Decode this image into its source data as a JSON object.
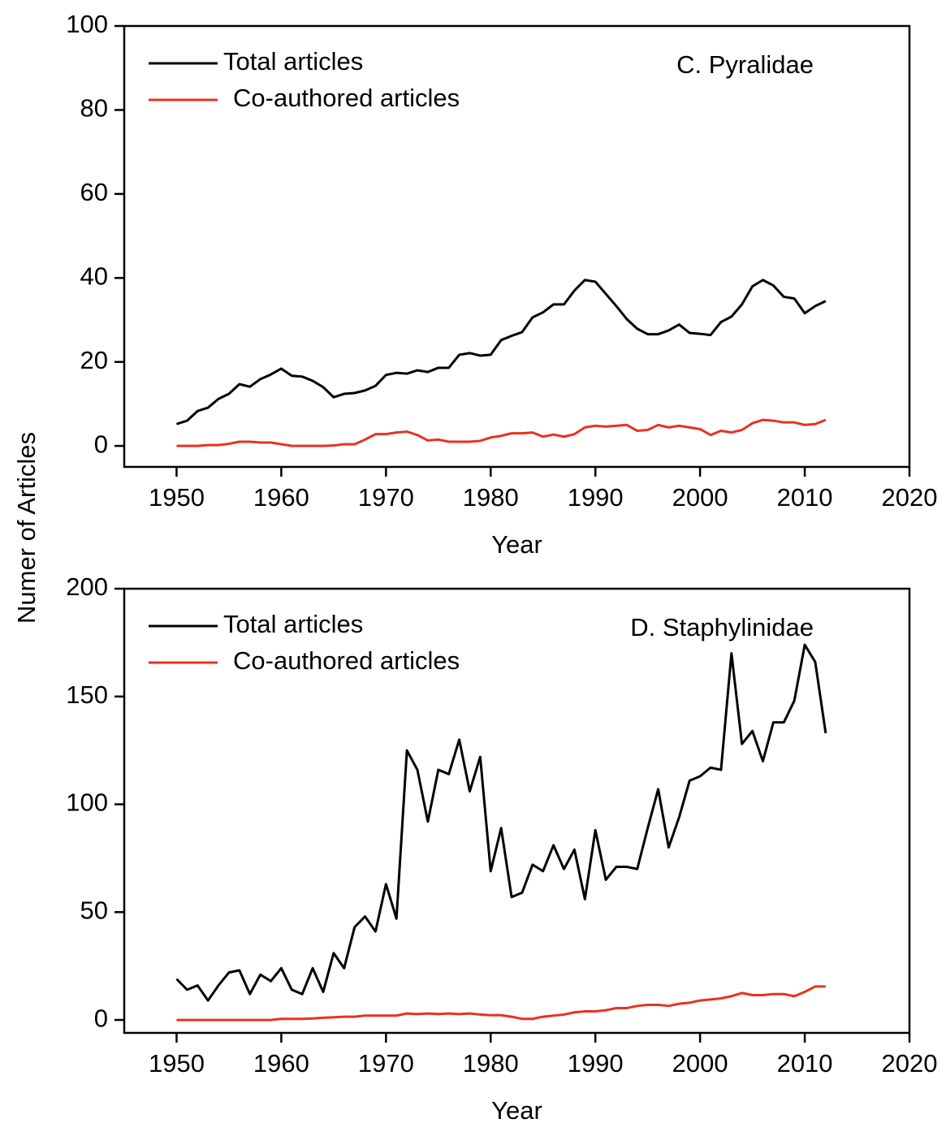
{
  "ylabel": "Numer of Articles",
  "chart_data": [
    {
      "type": "line",
      "annotation": "C. Pyralidae",
      "xlabel": "Year",
      "x": [
        1950,
        1951,
        1952,
        1953,
        1954,
        1955,
        1956,
        1957,
        1958,
        1959,
        1960,
        1961,
        1962,
        1963,
        1964,
        1965,
        1966,
        1967,
        1968,
        1969,
        1970,
        1971,
        1972,
        1973,
        1974,
        1975,
        1976,
        1977,
        1978,
        1979,
        1980,
        1981,
        1982,
        1983,
        1984,
        1985,
        1986,
        1987,
        1988,
        1989,
        1990,
        1991,
        1992,
        1993,
        1994,
        1995,
        1996,
        1997,
        1998,
        1999,
        2000,
        2001,
        2002,
        2003,
        2004,
        2005,
        2006,
        2007,
        2008,
        2009,
        2010,
        2011,
        2012
      ],
      "series": [
        {
          "name": "Total articles",
          "color": "#000000",
          "values": [
            5.2,
            6,
            8.3,
            9.1,
            11.2,
            12.4,
            14.7,
            14.1,
            15.9,
            17,
            18.4,
            16.7,
            16.5,
            15.5,
            14,
            11.6,
            12.4,
            12.6,
            13.2,
            14.3,
            16.9,
            17.4,
            17.2,
            18,
            17.6,
            18.6,
            18.6,
            21.7,
            22.1,
            21.5,
            21.7,
            25.2,
            26.2,
            27.1,
            30.6,
            31.8,
            33.7,
            33.7,
            37,
            39.5,
            39.1,
            36.2,
            33.3,
            30.2,
            27.9,
            26.6,
            26.6,
            27.5,
            28.9,
            26.9,
            26.7,
            26.4,
            29.5,
            30.8,
            33.7,
            38,
            39.5,
            38.2,
            35.5,
            35.1,
            31.6,
            33.3,
            34.5
          ]
        },
        {
          "name": "Co-authored articles",
          "color": "#e8321e",
          "values": [
            0,
            0,
            0,
            0.2,
            0.2,
            0.5,
            1,
            1,
            0.8,
            0.8,
            0.4,
            0,
            0,
            0,
            0,
            0.1,
            0.4,
            0.4,
            1.5,
            2.8,
            2.8,
            3.2,
            3.4,
            2.6,
            1.3,
            1.5,
            1,
            1,
            1,
            1.2,
            2,
            2.4,
            3,
            3,
            3.2,
            2.2,
            2.7,
            2.2,
            2.8,
            4.4,
            4.8,
            4.6,
            4.8,
            5,
            3.6,
            3.8,
            5,
            4.4,
            4.8,
            4.4,
            4,
            2.6,
            3.6,
            3.2,
            3.8,
            5.4,
            6.2,
            6,
            5.6,
            5.6,
            5,
            5.2,
            6.2
          ]
        }
      ],
      "xlim": [
        1945,
        2020
      ],
      "xticks": [
        1950,
        1960,
        1970,
        1980,
        1990,
        2000,
        2010,
        2020
      ],
      "ylim": [
        -5,
        100
      ],
      "yticks": [
        0,
        20,
        40,
        60,
        80,
        100
      ],
      "legend": "upper left"
    },
    {
      "type": "line",
      "annotation": "D. Staphylinidae",
      "xlabel": "Year",
      "x": [
        1950,
        1951,
        1952,
        1953,
        1954,
        1955,
        1956,
        1957,
        1958,
        1959,
        1960,
        1961,
        1962,
        1963,
        1964,
        1965,
        1966,
        1967,
        1968,
        1969,
        1970,
        1971,
        1972,
        1973,
        1974,
        1975,
        1976,
        1977,
        1978,
        1979,
        1980,
        1981,
        1982,
        1983,
        1984,
        1985,
        1986,
        1987,
        1988,
        1989,
        1990,
        1991,
        1992,
        1993,
        1994,
        1995,
        1996,
        1997,
        1998,
        1999,
        2000,
        2001,
        2002,
        2003,
        2004,
        2005,
        2006,
        2007,
        2008,
        2009,
        2010,
        2011,
        2012
      ],
      "series": [
        {
          "name": "Total articles",
          "color": "#000000",
          "values": [
            19,
            14,
            16,
            9,
            16,
            22,
            23,
            12,
            21,
            18,
            24,
            14,
            12,
            24,
            13,
            31,
            24,
            43,
            48,
            41,
            63,
            47,
            125,
            116,
            92,
            116,
            114,
            130,
            106,
            122,
            69,
            89,
            57,
            59,
            72,
            69,
            81,
            70,
            79,
            56,
            88,
            65,
            71,
            71,
            70,
            89,
            107,
            80,
            94,
            111,
            113,
            117,
            116,
            170,
            128,
            134,
            120,
            138,
            138,
            148,
            174,
            166,
            133
          ]
        },
        {
          "name": "Co-authored articles",
          "color": "#e8321e",
          "values": [
            0,
            0,
            0,
            0,
            0,
            0,
            0,
            0,
            0,
            0,
            0.5,
            0.5,
            0.5,
            0.7,
            1,
            1.2,
            1.5,
            1.5,
            2,
            2,
            2,
            2,
            3,
            2.7,
            3,
            2.7,
            3,
            2.7,
            3,
            2.5,
            2.2,
            2.2,
            1.5,
            0.5,
            0.5,
            1.5,
            2,
            2.5,
            3.5,
            4,
            4,
            4.5,
            5.5,
            5.5,
            6.5,
            7,
            7,
            6.5,
            7.5,
            8,
            9,
            9.5,
            10,
            11,
            12.5,
            11.5,
            11.5,
            12,
            12,
            11,
            13,
            15.5,
            15.5
          ]
        }
      ],
      "xlim": [
        1945,
        2020
      ],
      "xticks": [
        1950,
        1960,
        1970,
        1980,
        1990,
        2000,
        2010,
        2020
      ],
      "ylim": [
        -6,
        200
      ],
      "yticks": [
        0,
        50,
        100,
        150,
        200
      ],
      "legend": "upper left"
    }
  ]
}
